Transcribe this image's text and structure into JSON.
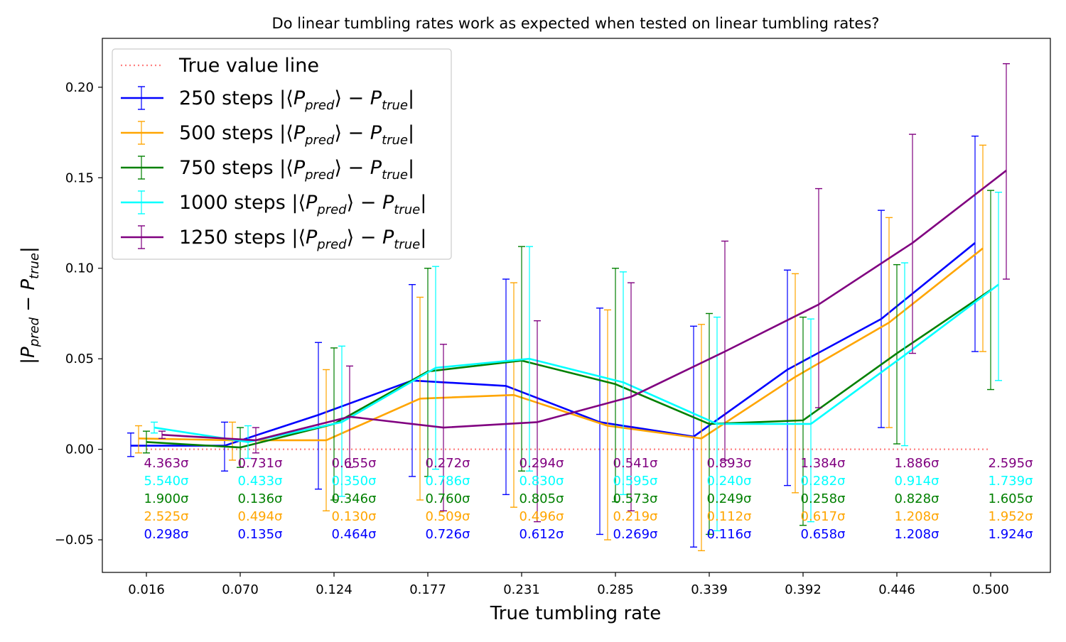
{
  "chart_data": {
    "type": "line",
    "title": "Do linear tumbling rates work as expected when tested on linear tumbling rates?",
    "xlabel": "True tumbling rate",
    "ylabel": "|P_pred − P_true|",
    "ylim": [
      -0.068,
      0.227
    ],
    "yticks": [
      "−0.05",
      "0.00",
      "0.05",
      "0.10",
      "0.15",
      "0.20"
    ],
    "ytick_values": [
      -0.05,
      0.0,
      0.05,
      0.1,
      0.15,
      0.2
    ],
    "categories": [
      "0.016",
      "0.070",
      "0.124",
      "0.177",
      "0.231",
      "0.285",
      "0.339",
      "0.392",
      "0.446",
      "0.500"
    ],
    "grid": false,
    "legend_position": "top-left",
    "reference_line": {
      "label": "True value line",
      "y": 0.0,
      "color": "#ff7f7f"
    },
    "series": [
      {
        "name": "250 steps |⟨P_pred⟩ − P_true|",
        "color": "#0000ff",
        "values": [
          0.002,
          0.002,
          0.019,
          0.038,
          0.035,
          0.015,
          0.007,
          0.044,
          0.072,
          0.114
        ],
        "err_low": [
          -0.004,
          -0.012,
          -0.022,
          -0.015,
          -0.025,
          -0.047,
          -0.054,
          -0.02,
          0.012,
          0.054
        ],
        "err_high": [
          0.009,
          0.015,
          0.059,
          0.091,
          0.094,
          0.078,
          0.068,
          0.099,
          0.132,
          0.173
        ],
        "sigma": [
          "0.298σ",
          "0.135σ",
          "0.464σ",
          "0.726σ",
          "0.612σ",
          "0.269σ",
          "0.116σ",
          "0.658σ",
          "1.208σ",
          "1.924σ"
        ]
      },
      {
        "name": "500 steps |⟨P_pred⟩ − P_true|",
        "color": "#ffa500",
        "values": [
          0.006,
          0.005,
          0.005,
          0.028,
          0.03,
          0.013,
          0.006,
          0.04,
          0.07,
          0.111
        ],
        "err_low": [
          -0.002,
          -0.006,
          -0.034,
          -0.028,
          -0.032,
          -0.05,
          -0.056,
          -0.024,
          0.012,
          0.054
        ],
        "err_high": [
          0.013,
          0.015,
          0.044,
          0.084,
          0.092,
          0.077,
          0.069,
          0.097,
          0.128,
          0.168
        ],
        "sigma": [
          "2.525σ",
          "0.494σ",
          "0.130σ",
          "0.509σ",
          "0.496σ",
          "0.219σ",
          "0.112σ",
          "0.617σ",
          "1.208σ",
          "1.952σ"
        ]
      },
      {
        "name": "750 steps |⟨P_pred⟩ − P_true|",
        "color": "#008000",
        "values": [
          0.004,
          0.001,
          0.014,
          0.043,
          0.049,
          0.036,
          0.014,
          0.016,
          0.053,
          0.088
        ],
        "err_low": [
          -0.002,
          -0.01,
          -0.028,
          -0.015,
          -0.012,
          -0.029,
          -0.047,
          -0.042,
          0.003,
          0.033
        ],
        "err_high": [
          0.01,
          0.012,
          0.056,
          0.1,
          0.112,
          0.1,
          0.075,
          0.073,
          0.102,
          0.143
        ],
        "sigma": [
          "1.900σ",
          "0.136σ",
          "0.346σ",
          "0.760σ",
          "0.805σ",
          "0.573σ",
          "0.249σ",
          "0.258σ",
          "0.828σ",
          "1.605σ"
        ]
      },
      {
        "name": "1000 steps |⟨P_pred⟩ − P_true|",
        "color": "#00ffff",
        "values": [
          0.012,
          0.004,
          0.015,
          0.045,
          0.05,
          0.037,
          0.014,
          0.014,
          0.052,
          0.091
        ],
        "err_low": [
          0.009,
          -0.005,
          -0.026,
          -0.011,
          -0.012,
          -0.025,
          -0.045,
          -0.04,
          0.002,
          0.038
        ],
        "err_high": [
          0.015,
          0.013,
          0.057,
          0.101,
          0.112,
          0.098,
          0.073,
          0.072,
          0.103,
          0.142
        ],
        "sigma": [
          "5.540σ",
          "0.433σ",
          "0.350σ",
          "0.786σ",
          "0.830σ",
          "0.595σ",
          "0.240σ",
          "0.282σ",
          "0.914σ",
          "1.739σ"
        ]
      },
      {
        "name": "1250 steps |⟨P_pred⟩ − P_true|",
        "color": "#800080",
        "values": [
          0.008,
          0.005,
          0.018,
          0.012,
          0.015,
          0.029,
          0.054,
          0.08,
          0.114,
          0.154
        ],
        "err_low": [
          0.006,
          -0.002,
          -0.01,
          -0.034,
          -0.04,
          -0.034,
          -0.006,
          0.023,
          0.053,
          0.094
        ],
        "err_high": [
          0.01,
          0.012,
          0.046,
          0.058,
          0.071,
          0.092,
          0.115,
          0.144,
          0.174,
          0.213
        ],
        "sigma": [
          "4.363σ",
          "0.731σ",
          "0.655σ",
          "0.272σ",
          "0.294σ",
          "0.541σ",
          "0.893σ",
          "1.384σ",
          "1.886σ",
          "2.595σ"
        ]
      }
    ]
  }
}
